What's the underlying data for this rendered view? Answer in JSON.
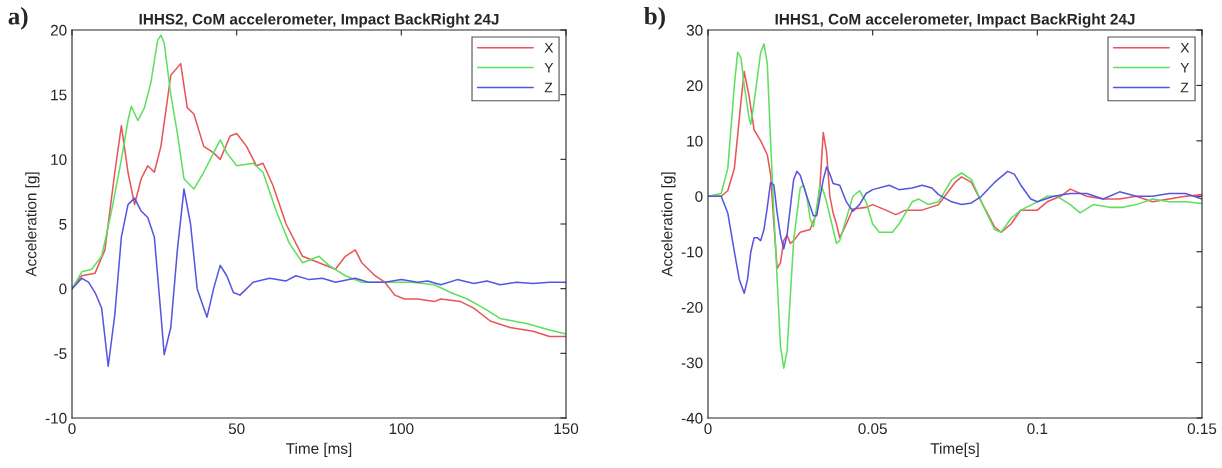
{
  "chart_data": [
    {
      "type": "line",
      "title": "IHHS2, CoM accelerometer, Impact BackRight 24J",
      "xlabel": "Time [ms]",
      "ylabel": "Acceleration [g]",
      "annotations": [
        "a)"
      ],
      "xlim": [
        0,
        150
      ],
      "xticks": [
        0,
        50,
        100,
        150
      ],
      "ylim": [
        -10,
        20
      ],
      "yticks": [
        -10,
        -5,
        0,
        5,
        10,
        15,
        20
      ],
      "legend": "top right",
      "grid": false,
      "line_style": "solid",
      "marker": "none",
      "series": [
        {
          "name": "X",
          "color": "#e8545a",
          "x": [
            0,
            3,
            7,
            10,
            13,
            15,
            17,
            19,
            21,
            23,
            25,
            27,
            30,
            33,
            35,
            37,
            40,
            43,
            45,
            48,
            50,
            53,
            56,
            58,
            61,
            65,
            70,
            75,
            80,
            83,
            86,
            88,
            92,
            95,
            98,
            101,
            105,
            110,
            112,
            118,
            122,
            127,
            133,
            140,
            145,
            150
          ],
          "values": [
            0,
            1,
            1.2,
            3,
            9,
            12.6,
            9,
            6.5,
            8.5,
            9.5,
            9,
            11,
            16.5,
            17.4,
            14,
            13.5,
            11,
            10.5,
            10,
            11.8,
            12,
            11,
            9.5,
            9.7,
            8,
            5,
            2.5,
            2,
            1.5,
            2.5,
            3,
            2,
            1,
            0.5,
            -0.5,
            -0.8,
            -0.8,
            -1,
            -0.8,
            -1,
            -1.5,
            -2.5,
            -3,
            -3.3,
            -3.7,
            -3.7
          ]
        },
        {
          "name": "Y",
          "color": "#5ee05e",
          "x": [
            0,
            3,
            6,
            9,
            12,
            15,
            17,
            18,
            20,
            22,
            24,
            26,
            27,
            28,
            30,
            32,
            34,
            37,
            40,
            43,
            45,
            47,
            50,
            55,
            58,
            62,
            66,
            70,
            75,
            78,
            83,
            88,
            95,
            103,
            110,
            115,
            120,
            125,
            130,
            138,
            145,
            150
          ],
          "values": [
            0,
            1.3,
            1.5,
            2.5,
            6,
            10,
            13,
            14.1,
            13,
            14,
            16,
            19.2,
            19.6,
            19,
            15,
            12,
            8.5,
            7.7,
            9,
            10.5,
            11.5,
            10.5,
            9.5,
            9.7,
            9,
            6,
            3.5,
            2,
            2.5,
            1.8,
            1,
            0.5,
            0.5,
            0.5,
            0.3,
            -0.3,
            -0.8,
            -1.5,
            -2.3,
            -2.7,
            -3.2,
            -3.5
          ]
        },
        {
          "name": "Z",
          "color": "#5555e0",
          "x": [
            0,
            3,
            5,
            7,
            9,
            11,
            13,
            15,
            17,
            19,
            21,
            23,
            25,
            27,
            28,
            30,
            32,
            34,
            36,
            38,
            40,
            41,
            43,
            45,
            47,
            49,
            51,
            55,
            60,
            65,
            68,
            72,
            76,
            80,
            86,
            90,
            95,
            100,
            105,
            108,
            112,
            117,
            122,
            126,
            130,
            135,
            140,
            145,
            150
          ],
          "values": [
            0,
            0.8,
            0.5,
            -0.3,
            -1.5,
            -6,
            -2,
            4,
            6.5,
            7,
            6,
            5.5,
            4,
            -2,
            -5.1,
            -3,
            3,
            7.7,
            5,
            0,
            -1.5,
            -2.2,
            0,
            1.8,
            1,
            -0.3,
            -0.5,
            0.5,
            0.8,
            0.6,
            1,
            0.7,
            0.8,
            0.5,
            0.8,
            0.5,
            0.5,
            0.7,
            0.5,
            0.6,
            0.3,
            0.7,
            0.4,
            0.6,
            0.3,
            0.5,
            0.4,
            0.5,
            0.5
          ]
        }
      ]
    },
    {
      "type": "line",
      "title": "IHHS1, CoM accelerometer, Impact BackRight 24J",
      "xlabel": "Time[s]",
      "ylabel": "Acceleration [g]",
      "annotations": [
        "b)"
      ],
      "xlim": [
        0,
        0.15
      ],
      "xticks": [
        0,
        0.05,
        0.1,
        0.15
      ],
      "ylim": [
        -40,
        30
      ],
      "yticks": [
        -40,
        -30,
        -20,
        -10,
        0,
        10,
        20,
        30
      ],
      "legend": "top right",
      "grid": false,
      "line_style": "solid",
      "marker": "none",
      "series": [
        {
          "name": "X",
          "color": "#e8545a",
          "x": [
            0,
            0.004,
            0.006,
            0.008,
            0.01,
            0.011,
            0.0125,
            0.014,
            0.016,
            0.018,
            0.019,
            0.02,
            0.021,
            0.022,
            0.023,
            0.024,
            0.025,
            0.026,
            0.028,
            0.031,
            0.033,
            0.034,
            0.035,
            0.036,
            0.037,
            0.038,
            0.039,
            0.04,
            0.042,
            0.044,
            0.048,
            0.05,
            0.054,
            0.057,
            0.06,
            0.065,
            0.07,
            0.075,
            0.077,
            0.08,
            0.083,
            0.087,
            0.089,
            0.092,
            0.095,
            0.1,
            0.103,
            0.107,
            0.11,
            0.115,
            0.12,
            0.125,
            0.13,
            0.135,
            0.14,
            0.145,
            0.15
          ],
          "values": [
            0,
            0,
            1,
            5,
            17,
            22.5,
            18,
            12,
            10,
            7.5,
            4,
            -5,
            -13,
            -12,
            -8,
            -7,
            -8.5,
            -8,
            -6.5,
            -6,
            -3,
            2,
            11.5,
            8,
            0,
            -3,
            -5,
            -7.5,
            -5,
            -2.3,
            -2,
            -1.5,
            -2.5,
            -3.3,
            -2.5,
            -2.5,
            -1.5,
            2.5,
            3.5,
            2.5,
            -1,
            -5.5,
            -6.5,
            -5,
            -2.5,
            -2.5,
            -1,
            0,
            1.3,
            0,
            -0.5,
            -0.5,
            0,
            -1,
            -0.5,
            0,
            0.3
          ]
        },
        {
          "name": "Y",
          "color": "#5ee05e",
          "x": [
            0,
            0.004,
            0.006,
            0.008,
            0.009,
            0.01,
            0.011,
            0.0125,
            0.013,
            0.014,
            0.016,
            0.017,
            0.018,
            0.019,
            0.02,
            0.021,
            0.022,
            0.023,
            0.024,
            0.025,
            0.026,
            0.028,
            0.029,
            0.03,
            0.031,
            0.032,
            0.033,
            0.034,
            0.035,
            0.036,
            0.038,
            0.039,
            0.04,
            0.042,
            0.044,
            0.046,
            0.048,
            0.05,
            0.052,
            0.056,
            0.058,
            0.062,
            0.064,
            0.067,
            0.07,
            0.074,
            0.077,
            0.08,
            0.083,
            0.087,
            0.089,
            0.092,
            0.095,
            0.1,
            0.103,
            0.106,
            0.11,
            0.113,
            0.117,
            0.122,
            0.126,
            0.13,
            0.135,
            0.14,
            0.145,
            0.15
          ],
          "values": [
            0,
            0.5,
            5,
            20,
            26,
            25,
            20,
            14,
            13,
            17,
            26,
            27.5,
            24,
            10,
            -3,
            -15,
            -27,
            -31,
            -28,
            -18,
            -8,
            1.5,
            2,
            0,
            -4,
            -5.5,
            -2,
            2,
            1,
            -1,
            -6,
            -8.5,
            -8,
            -4,
            0,
            1,
            -1,
            -5,
            -6.5,
            -6.5,
            -5,
            -1,
            -0.5,
            -1.5,
            -1,
            3,
            4.2,
            3,
            -1,
            -6,
            -6.5,
            -4,
            -2.5,
            -1,
            0,
            0,
            -1.5,
            -3,
            -1.5,
            -2,
            -2,
            -1.5,
            -0.5,
            -1,
            -1,
            -1.3
          ]
        },
        {
          "name": "Z",
          "color": "#5555e0",
          "x": [
            0,
            0.004,
            0.006,
            0.008,
            0.0095,
            0.011,
            0.012,
            0.013,
            0.014,
            0.015,
            0.016,
            0.017,
            0.018,
            0.019,
            0.02,
            0.021,
            0.022,
            0.023,
            0.024,
            0.025,
            0.026,
            0.027,
            0.028,
            0.03,
            0.032,
            0.033,
            0.035,
            0.036,
            0.037,
            0.038,
            0.04,
            0.042,
            0.044,
            0.046,
            0.048,
            0.05,
            0.055,
            0.058,
            0.062,
            0.065,
            0.068,
            0.07,
            0.074,
            0.077,
            0.08,
            0.083,
            0.087,
            0.091,
            0.093,
            0.095,
            0.098,
            0.1,
            0.105,
            0.11,
            0.115,
            0.12,
            0.125,
            0.13,
            0.135,
            0.14,
            0.145,
            0.15
          ],
          "values": [
            0,
            0,
            -3,
            -10,
            -15,
            -17.5,
            -15,
            -10,
            -7.5,
            -7.5,
            -8,
            -6,
            -2,
            2.5,
            2,
            -3,
            -7,
            -9.5,
            -7,
            -2,
            3,
            4.5,
            3.8,
            0,
            -3.5,
            -3.5,
            3,
            5.3,
            4,
            2.3,
            2,
            -1,
            -2.7,
            -1.5,
            0.5,
            1.2,
            2,
            1.2,
            1.5,
            2,
            1.5,
            0.3,
            -1,
            -1.5,
            -1.2,
            0,
            2.5,
            4.5,
            4,
            2,
            -0.5,
            -1,
            0,
            0.5,
            0.5,
            -0.5,
            0.8,
            0,
            0,
            0.5,
            0.5,
            -0.5
          ]
        }
      ]
    }
  ]
}
